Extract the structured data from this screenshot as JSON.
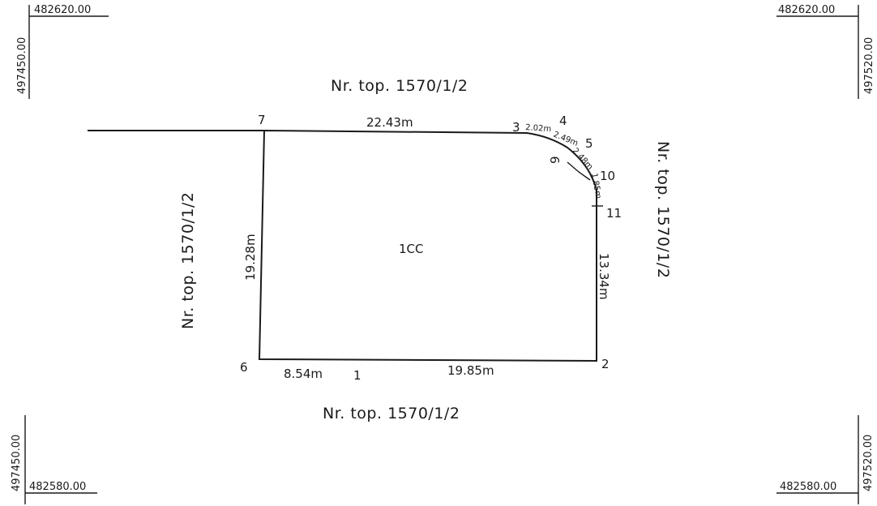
{
  "corners": {
    "tl_x": "482620.00",
    "tl_y": "497450.00",
    "tr_x": "482620.00",
    "tr_y": "497520.00",
    "bl_x": "482580.00",
    "bl_y": "497450.00",
    "br_x": "482580.00",
    "br_y": "497520.00"
  },
  "neighbors": {
    "top": "Nr. top. 1570/1/2",
    "bottom": "Nr. top. 1570/1/2",
    "left": "Nr. top. 1570/1/2",
    "right": "Nr. top. 1570/1/2"
  },
  "parcel": {
    "label": "1CC"
  },
  "measurements": {
    "top": "22.43m",
    "left": "19.28m",
    "right": "13.34m",
    "bottom_left": "8.54m",
    "bottom_right": "19.85m",
    "arc_1": "2.02m",
    "arc_2": "2.49m",
    "arc_3": "2.48m",
    "arc_4": "1.85m"
  },
  "points": {
    "p1": "1",
    "p2": "2",
    "p3": "3",
    "p4": "4",
    "p5": "5",
    "p6": "6",
    "p7": "7",
    "p9": "9",
    "p10": "10",
    "p11": "11"
  }
}
